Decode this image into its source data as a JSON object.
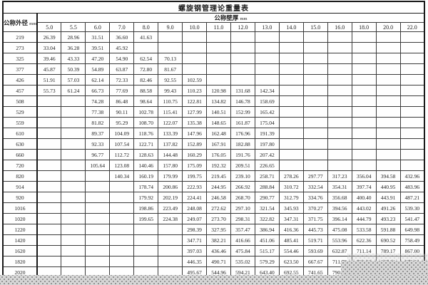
{
  "title": "螺旋钢管理论重量表",
  "header": {
    "row_label": "公称外径",
    "row_label_unit": "mm",
    "col_group": "公称壁厚",
    "col_group_unit": "mm",
    "thickness_columns": [
      "5.0",
      "5.5",
      "6.0",
      "7.0",
      "8.0",
      "9.0",
      "10.0",
      "11.0",
      "12.0",
      "13.0",
      "14.0",
      "15.0",
      "16.0",
      "18.0",
      "20.0",
      "22.0"
    ]
  },
  "colors": {
    "background": "#fefefe",
    "text": "#1b1b1b",
    "border": "#1a1a1a",
    "dither_background": "#d7d7d7",
    "dither_dot": "#8e8e8e"
  },
  "rows": [
    {
      "od": "219",
      "values": [
        "26.39",
        "28.96",
        "31.51",
        "36.60",
        "41.63",
        "",
        "",
        "",
        "",
        "",
        "",
        "",
        "",
        "",
        "",
        ""
      ]
    },
    {
      "od": "273",
      "values": [
        "33.04",
        "36.28",
        "39.51",
        "45.92",
        "",
        "",
        "",
        "",
        "",
        "",
        "",
        "",
        "",
        "",
        "",
        ""
      ]
    },
    {
      "od": "325",
      "values": [
        "39.46",
        "43.33",
        "47.20",
        "54.90",
        "62.54",
        "70.13",
        "",
        "",
        "",
        "",
        "",
        "",
        "",
        "",
        "",
        ""
      ]
    },
    {
      "od": "377",
      "values": [
        "45.87",
        "50.39",
        "54.89",
        "63.87",
        "72.80",
        "81.67",
        "",
        "",
        "",
        "",
        "",
        "",
        "",
        "",
        "",
        ""
      ]
    },
    {
      "od": "426",
      "values": [
        "51.91",
        "57.03",
        "62.14",
        "72.33",
        "82.46",
        "92.55",
        "102.59",
        "",
        "",
        "",
        "",
        "",
        "",
        "",
        "",
        ""
      ]
    },
    {
      "od": "457",
      "values": [
        "55.73",
        "61.24",
        "66.73",
        "77.69",
        "88.58",
        "99.43",
        "110.23",
        "120.98",
        "131.68",
        "142.34",
        "",
        "",
        "",
        "",
        "",
        ""
      ]
    },
    {
      "od": "508",
      "values": [
        "",
        "",
        "74.28",
        "86.48",
        "98.64",
        "110.75",
        "122.81",
        "134.82",
        "146.78",
        "158.69",
        "",
        "",
        "",
        "",
        "",
        ""
      ]
    },
    {
      "od": "529",
      "values": [
        "",
        "",
        "77.38",
        "90.11",
        "102.78",
        "115.41",
        "127.99",
        "140.51",
        "152.99",
        "165.42",
        "",
        "",
        "",
        "",
        "",
        ""
      ]
    },
    {
      "od": "559",
      "values": [
        "",
        "",
        "81.82",
        "95.29",
        "108.70",
        "122.07",
        "135.38",
        "148.65",
        "161.87",
        "175.04",
        "",
        "",
        "",
        "",
        "",
        ""
      ]
    },
    {
      "od": "610",
      "values": [
        "",
        "",
        "89.37",
        "104.09",
        "118.76",
        "133.39",
        "147.96",
        "162.48",
        "176.96",
        "191.39",
        "",
        "",
        "",
        "",
        "",
        ""
      ]
    },
    {
      "od": "630",
      "values": [
        "",
        "",
        "92.33",
        "107.54",
        "122.71",
        "137.82",
        "152.89",
        "167.91",
        "182.88",
        "197.80",
        "",
        "",
        "",
        "",
        "",
        ""
      ]
    },
    {
      "od": "660",
      "values": [
        "",
        "",
        "96.77",
        "112.72",
        "128.63",
        "144.48",
        "160.29",
        "176.05",
        "191.76",
        "207.42",
        "",
        "",
        "",
        "",
        "",
        ""
      ]
    },
    {
      "od": "720",
      "values": [
        "",
        "",
        "105.64",
        "123.08",
        "140.46",
        "157.80",
        "175.09",
        "192.32",
        "209.51",
        "226.65",
        "",
        "",
        "",
        "",
        "",
        ""
      ]
    },
    {
      "od": "820",
      "values": [
        "",
        "",
        "",
        "140.34",
        "160.19",
        "179.99",
        "199.75",
        "219.45",
        "239.10",
        "258.71",
        "278.26",
        "297.77",
        "317.23",
        "356.04",
        "394.58",
        "432.96"
      ]
    },
    {
      "od": "914",
      "values": [
        "",
        "",
        "",
        "",
        "178.74",
        "200.86",
        "222.93",
        "244.95",
        "266.92",
        "288.84",
        "310.72",
        "332.54",
        "354.31",
        "397.74",
        "440.95",
        "483.96"
      ]
    },
    {
      "od": "920",
      "values": [
        "",
        "",
        "",
        "",
        "179.92",
        "202.19",
        "224.41",
        "246.58",
        "268.70",
        "290.77",
        "312.79",
        "334.76",
        "356.68",
        "400.40",
        "443.91",
        "487.21"
      ]
    },
    {
      "od": "1016",
      "values": [
        "",
        "",
        "",
        "",
        "198.86",
        "223.49",
        "248.08",
        "272.62",
        "297.10",
        "321.54",
        "345.93",
        "370.27",
        "394.56",
        "443.02",
        "491.26",
        "539.30"
      ]
    },
    {
      "od": "1020",
      "values": [
        "",
        "",
        "",
        "",
        "199.65",
        "224.38",
        "249.07",
        "273.70",
        "298.31",
        "322.82",
        "347.31",
        "371.75",
        "396.14",
        "444.79",
        "493.23",
        "541.47"
      ]
    },
    {
      "od": "1220",
      "values": [
        "",
        "",
        "",
        "",
        "",
        "",
        "298.39",
        "327.95",
        "357.47",
        "386.94",
        "416.36",
        "445.73",
        "475.08",
        "533.58",
        "591.88",
        "649.98"
      ]
    },
    {
      "od": "1420",
      "values": [
        "",
        "",
        "",
        "",
        "",
        "",
        "347.71",
        "382.21",
        "416.66",
        "451.06",
        "485.41",
        "519.71",
        "553.96",
        "622.36",
        "690.52",
        "758.49"
      ]
    },
    {
      "od": "1620",
      "values": [
        "",
        "",
        "",
        "",
        "",
        "",
        "397.03",
        "436.46",
        "475.84",
        "515.17",
        "554.46",
        "593.69",
        "632.87",
        "711.14",
        "789.17",
        "867.00"
      ]
    },
    {
      "od": "1820",
      "values": [
        "",
        "",
        "",
        "",
        "",
        "",
        "446.35",
        "490.71",
        "535.02",
        "579.29",
        "623.50",
        "667.67",
        "711.79",
        "799.92",
        "887.81",
        "975.51"
      ]
    },
    {
      "od": "2020",
      "values": [
        "",
        "",
        "",
        "",
        "",
        "",
        "495.67",
        "544.96",
        "594.21",
        "643.40",
        "692.55",
        "741.65",
        "790.70",
        "",
        "",
        ""
      ]
    }
  ]
}
